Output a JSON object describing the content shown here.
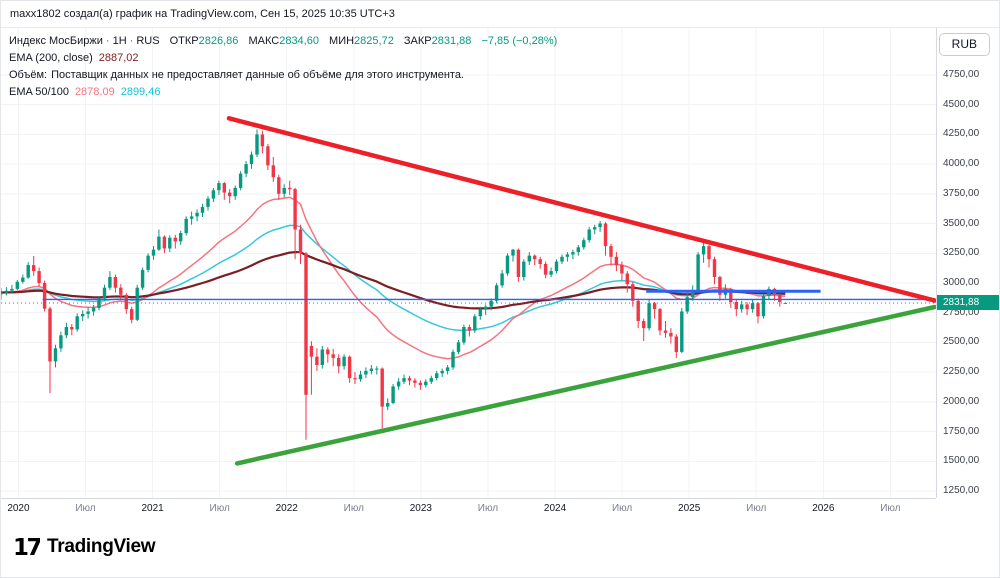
{
  "attribution": {
    "text": "maxx1802 создал(а) график на TradingView.com, Сен 15, 2025 10:35 UTC+3"
  },
  "toolbar": {
    "currency_label": "RUB"
  },
  "legend": {
    "symbol": "Индекс МосБиржи",
    "separator": "·",
    "interval": "1Н",
    "market": "RUS",
    "ohlc": [
      {
        "label": "ОТКР",
        "value": "2826,86"
      },
      {
        "label": "МАКС",
        "value": "2834,60"
      },
      {
        "label": "МИН",
        "value": "2825,72"
      },
      {
        "label": "ЗАКР",
        "value": "2831,88"
      }
    ],
    "change": "−7,85 (−0,28%)",
    "ema200": {
      "label": "EMA (200, close)",
      "value": "2887,02"
    },
    "volume": {
      "label": "Объём:",
      "message": "Поставщик данных не предоставляет данные об объёме для этого инструмента."
    },
    "ema50_100": {
      "label": "EMA 50/100",
      "value50": "2878,09",
      "value100": "2899,46"
    }
  },
  "footer": {
    "brand": "TradingView"
  },
  "chart_data": {
    "type": "candlestick",
    "title": "Индекс МосБиржи",
    "interval": "1Н (1 неделя)",
    "currency": "RUB",
    "grid": true,
    "colors": {
      "up": "#089981",
      "down": "#f23645",
      "grid": "#f2f3f7",
      "axis_border": "#d6d9e0",
      "background": "#ffffff"
    },
    "x_axis": {
      "t_start": 2019.87,
      "t_end": 2026.84,
      "ticks": [
        {
          "t": 2020.0,
          "label": "2020",
          "major": true
        },
        {
          "t": 2020.5,
          "label": "Июл",
          "major": false
        },
        {
          "t": 2021.0,
          "label": "2021",
          "major": true
        },
        {
          "t": 2021.5,
          "label": "Июл",
          "major": false
        },
        {
          "t": 2022.0,
          "label": "2022",
          "major": true
        },
        {
          "t": 2022.5,
          "label": "Июл",
          "major": false
        },
        {
          "t": 2023.0,
          "label": "2023",
          "major": true
        },
        {
          "t": 2023.5,
          "label": "Июл",
          "major": false
        },
        {
          "t": 2024.0,
          "label": "2024",
          "major": true
        },
        {
          "t": 2024.5,
          "label": "Июл",
          "major": false
        },
        {
          "t": 2025.0,
          "label": "2025",
          "major": true
        },
        {
          "t": 2025.5,
          "label": "Июл",
          "major": false
        },
        {
          "t": 2026.0,
          "label": "2026",
          "major": true
        },
        {
          "t": 2026.5,
          "label": "Июл",
          "major": false
        }
      ]
    },
    "y_axis": {
      "pane_min": 1191,
      "pane_max": 5145,
      "tick_values": [
        4750,
        4500,
        4250,
        4000,
        3750,
        3500,
        3250,
        3000,
        2750,
        2500,
        2250,
        2000,
        1750,
        1500,
        1250
      ],
      "tick_labels": [
        "4750,00",
        "4500,00",
        "4250,00",
        "4000,00",
        "3750,00",
        "3500,00",
        "3250,00",
        "3000,00",
        "2750,00",
        "2500,00",
        "2250,00",
        "2000,00",
        "1750,00",
        "1500,00",
        "1250,00"
      ]
    },
    "last_price": {
      "label": "2831,88",
      "value": 2831.88,
      "line_color": "#089981",
      "badge_bg": "#089981",
      "badge_text": "#ffffff"
    },
    "candles": {
      "t_start": 2019.87,
      "t_step": 0.0406,
      "ohlc": [
        [
          2905,
          2955,
          2860,
          2920
        ],
        [
          2920,
          2965,
          2895,
          2935
        ],
        [
          2935,
          2985,
          2915,
          2950
        ],
        [
          2950,
          3025,
          2940,
          3010
        ],
        [
          3010,
          3070,
          2995,
          3045
        ],
        [
          3045,
          3175,
          3035,
          3150
        ],
        [
          3150,
          3227,
          3060,
          3100
        ],
        [
          3100,
          3130,
          2970,
          3000
        ],
        [
          3000,
          3020,
          2760,
          2785
        ],
        [
          2785,
          2800,
          2073,
          2340
        ],
        [
          2340,
          2480,
          2290,
          2450
        ],
        [
          2450,
          2590,
          2420,
          2560
        ],
        [
          2560,
          2665,
          2535,
          2630
        ],
        [
          2630,
          2655,
          2560,
          2610
        ],
        [
          2610,
          2745,
          2590,
          2720
        ],
        [
          2720,
          2770,
          2680,
          2740
        ],
        [
          2740,
          2795,
          2700,
          2760
        ],
        [
          2760,
          2815,
          2725,
          2790
        ],
        [
          2790,
          2890,
          2770,
          2870
        ],
        [
          2870,
          2985,
          2850,
          2960
        ],
        [
          2960,
          3100,
          2940,
          3050
        ],
        [
          3050,
          3070,
          2920,
          2960
        ],
        [
          2960,
          2990,
          2860,
          2900
        ],
        [
          2900,
          2915,
          2740,
          2780
        ],
        [
          2780,
          2800,
          2660,
          2690
        ],
        [
          2690,
          2985,
          2680,
          2960
        ],
        [
          2960,
          3130,
          2940,
          3110
        ],
        [
          3110,
          3250,
          3090,
          3230
        ],
        [
          3230,
          3310,
          3195,
          3280
        ],
        [
          3280,
          3450,
          3270,
          3390
        ],
        [
          3390,
          3400,
          3250,
          3290
        ],
        [
          3290,
          3400,
          3260,
          3380
        ],
        [
          3380,
          3405,
          3290,
          3350
        ],
        [
          3350,
          3440,
          3320,
          3420
        ],
        [
          3420,
          3560,
          3400,
          3540
        ],
        [
          3540,
          3600,
          3490,
          3560
        ],
        [
          3560,
          3620,
          3520,
          3590
        ],
        [
          3590,
          3665,
          3555,
          3640
        ],
        [
          3640,
          3730,
          3610,
          3710
        ],
        [
          3710,
          3800,
          3680,
          3780
        ],
        [
          3780,
          3860,
          3740,
          3840
        ],
        [
          3840,
          3850,
          3700,
          3760
        ],
        [
          3760,
          3790,
          3670,
          3730
        ],
        [
          3730,
          3820,
          3700,
          3800
        ],
        [
          3800,
          3940,
          3780,
          3920
        ],
        [
          3920,
          4025,
          3890,
          4000
        ],
        [
          4000,
          4105,
          3960,
          4080
        ],
        [
          4080,
          4292,
          4060,
          4250
        ],
        [
          4250,
          4280,
          4090,
          4150
        ],
        [
          4150,
          4170,
          3950,
          3990
        ],
        [
          3990,
          4060,
          3850,
          3890
        ],
        [
          3890,
          3910,
          3700,
          3750
        ],
        [
          3750,
          3830,
          3720,
          3800
        ],
        [
          3800,
          3860,
          3740,
          3790
        ],
        [
          3790,
          3800,
          3200,
          3450
        ],
        [
          3450,
          3490,
          3160,
          3250
        ],
        [
          3250,
          3260,
          1681,
          2060
        ],
        [
          2470,
          2510,
          2060,
          2380
        ],
        [
          2380,
          2450,
          2260,
          2310
        ],
        [
          2310,
          2470,
          2280,
          2440
        ],
        [
          2440,
          2460,
          2330,
          2400
        ],
        [
          2400,
          2445,
          2300,
          2370
        ],
        [
          2370,
          2400,
          2240,
          2300
        ],
        [
          2300,
          2400,
          2270,
          2380
        ],
        [
          2380,
          2390,
          2160,
          2200
        ],
        [
          2200,
          2250,
          2150,
          2190
        ],
        [
          2190,
          2260,
          2170,
          2230
        ],
        [
          2230,
          2290,
          2200,
          2260
        ],
        [
          2260,
          2310,
          2230,
          2280
        ],
        [
          2280,
          2300,
          2230,
          2280
        ],
        [
          2280,
          2290,
          1775,
          1960
        ],
        [
          1960,
          2030,
          1930,
          1990
        ],
        [
          1990,
          2150,
          1980,
          2130
        ],
        [
          2130,
          2200,
          2100,
          2170
        ],
        [
          2170,
          2230,
          2150,
          2200
        ],
        [
          2200,
          2220,
          2140,
          2180
        ],
        [
          2180,
          2200,
          2120,
          2160
        ],
        [
          2160,
          2180,
          2100,
          2140
        ],
        [
          2140,
          2190,
          2120,
          2170
        ],
        [
          2170,
          2220,
          2150,
          2200
        ],
        [
          2200,
          2260,
          2180,
          2240
        ],
        [
          2240,
          2280,
          2210,
          2260
        ],
        [
          2260,
          2310,
          2230,
          2290
        ],
        [
          2290,
          2440,
          2270,
          2420
        ],
        [
          2420,
          2520,
          2400,
          2500
        ],
        [
          2500,
          2650,
          2480,
          2630
        ],
        [
          2630,
          2650,
          2550,
          2600
        ],
        [
          2600,
          2740,
          2580,
          2720
        ],
        [
          2720,
          2800,
          2690,
          2780
        ],
        [
          2780,
          2820,
          2730,
          2800
        ],
        [
          2800,
          2870,
          2770,
          2850
        ],
        [
          2850,
          3000,
          2830,
          2980
        ],
        [
          2980,
          3110,
          2960,
          3080
        ],
        [
          3080,
          3250,
          3060,
          3230
        ],
        [
          3230,
          3287,
          3180,
          3280
        ],
        [
          3280,
          3290,
          3010,
          3050
        ],
        [
          3050,
          3200,
          3020,
          3180
        ],
        [
          3180,
          3260,
          3150,
          3230
        ],
        [
          3230,
          3240,
          3150,
          3200
        ],
        [
          3200,
          3220,
          3120,
          3160
        ],
        [
          3160,
          3180,
          3040,
          3070
        ],
        [
          3070,
          3130,
          3050,
          3100
        ],
        [
          3100,
          3200,
          3080,
          3180
        ],
        [
          3180,
          3240,
          3160,
          3220
        ],
        [
          3220,
          3260,
          3180,
          3240
        ],
        [
          3240,
          3280,
          3200,
          3260
        ],
        [
          3260,
          3320,
          3230,
          3300
        ],
        [
          3300,
          3380,
          3280,
          3360
        ],
        [
          3360,
          3470,
          3340,
          3450
        ],
        [
          3450,
          3490,
          3410,
          3470
        ],
        [
          3470,
          3521,
          3430,
          3500
        ],
        [
          3500,
          3510,
          3230,
          3310
        ],
        [
          3310,
          3330,
          3150,
          3220
        ],
        [
          3220,
          3260,
          3100,
          3150
        ],
        [
          3150,
          3180,
          3020,
          3080
        ],
        [
          3080,
          3100,
          2920,
          2990
        ],
        [
          2990,
          3010,
          2800,
          2850
        ],
        [
          2850,
          2870,
          2620,
          2680
        ],
        [
          2680,
          2700,
          2512,
          2620
        ],
        [
          2620,
          2860,
          2600,
          2830
        ],
        [
          2830,
          2840,
          2700,
          2780
        ],
        [
          2780,
          2790,
          2560,
          2600
        ],
        [
          2600,
          2680,
          2540,
          2580
        ],
        [
          2580,
          2620,
          2490,
          2550
        ],
        [
          2550,
          2570,
          2370,
          2420
        ],
        [
          2420,
          2790,
          2410,
          2760
        ],
        [
          2760,
          2920,
          2740,
          2880
        ],
        [
          2880,
          2980,
          2850,
          2940
        ],
        [
          2940,
          3260,
          2920,
          3240
        ],
        [
          3240,
          3371,
          3170,
          3310
        ],
        [
          3310,
          3320,
          3130,
          3200
        ],
        [
          3200,
          3220,
          2990,
          3050
        ],
        [
          3050,
          3060,
          2850,
          2900
        ],
        [
          2900,
          2990,
          2870,
          2950
        ],
        [
          2950,
          2960,
          2790,
          2840
        ],
        [
          2840,
          2860,
          2720,
          2780
        ],
        [
          2780,
          2850,
          2750,
          2820
        ],
        [
          2820,
          2840,
          2730,
          2780
        ],
        [
          2780,
          2860,
          2750,
          2830
        ],
        [
          2830,
          2840,
          2660,
          2720
        ],
        [
          2720,
          2910,
          2700,
          2890
        ],
        [
          2890,
          2970,
          2860,
          2950
        ],
        [
          2950,
          2960,
          2850,
          2900
        ],
        [
          2900,
          2910,
          2800,
          2840
        ],
        [
          2827,
          2835,
          2826,
          2832
        ]
      ]
    },
    "overlays": {
      "week_step": 2.11,
      "ema": [
        {
          "name": "ema-100-line",
          "label": "EMA 100",
          "period": 100,
          "color": "#35c8de",
          "width": 1.5
        },
        {
          "name": "ema-50-line",
          "label": "EMA 50",
          "period": 50,
          "color": "#f7747e",
          "width": 1.5
        },
        {
          "name": "ema-200-line",
          "label": "EMA 200",
          "period": 200,
          "color": "#7a1f23",
          "width": 2.2
        }
      ],
      "trendlines": [
        {
          "name": "descending-resistance-trendline",
          "color": "#ec2029",
          "width": 4.5,
          "t1": 2021.57,
          "p1": 4385,
          "t2": 2026.83,
          "p2": 2852
        },
        {
          "name": "ascending-support-trendline",
          "color": "#3ba33b",
          "width": 4.5,
          "t1": 2021.63,
          "p1": 1482,
          "t2": 2026.83,
          "p2": 2798
        }
      ],
      "horizontal_lines": [
        {
          "name": "horizontal-level-long",
          "price": 2862,
          "t1": 2020.18,
          "t2": 2026.8,
          "color": "#2962ff",
          "width": 1.4
        },
        {
          "name": "horizontal-level-short",
          "price": 2930,
          "t1": 2024.68,
          "t2": 2025.98,
          "color": "#2962ff",
          "width": 3
        }
      ]
    }
  }
}
